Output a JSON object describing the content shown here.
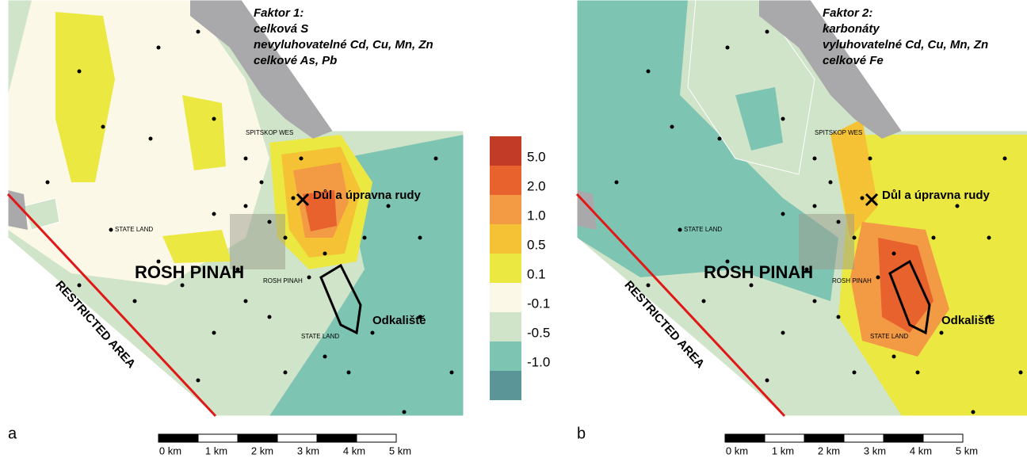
{
  "panels": [
    {
      "letter": "a",
      "title": [
        "Faktor 1:",
        "celková S",
        "nevyluhovatelné Cd, Cu, Mn, Zn",
        "celkové As, Pb"
      ],
      "labels": [
        "Důl a úpravna rudy",
        "ROSH PINAH",
        "Odkaliště",
        "RESTRICTED AREA",
        "STATE LAND",
        "STATE LAND",
        "ROSH PINAH",
        "SPITSKOP WES"
      ]
    },
    {
      "letter": "b",
      "title": [
        "Faktor 2:",
        "karbonáty",
        "vyluhovatelné Cd, Cu, Mn, Zn",
        "celkové Fe"
      ],
      "labels": [
        "Důl a úpravna rudy",
        "ROSH PINAH",
        "Odkaliště",
        "RESTRICTED AREA",
        "STATE LAND",
        "STATE LAND",
        "ROSH PINAH",
        "SPITSKOP WES"
      ]
    }
  ],
  "legend": {
    "colors": [
      "#c23b26",
      "#e8622e",
      "#f39a44",
      "#f4c234",
      "#ece842",
      "#fbf8e8",
      "#cfe4c8",
      "#7ec4b2",
      "#5b9598"
    ],
    "labels": [
      "5.0",
      "2.0",
      "1.0",
      "0.5",
      "0.1",
      "-0.1",
      "-0.5",
      "-1.0"
    ]
  },
  "scale_bar": [
    "0 km",
    "1 km",
    "2 km",
    "3 km",
    "4 km",
    "5 km"
  ]
}
